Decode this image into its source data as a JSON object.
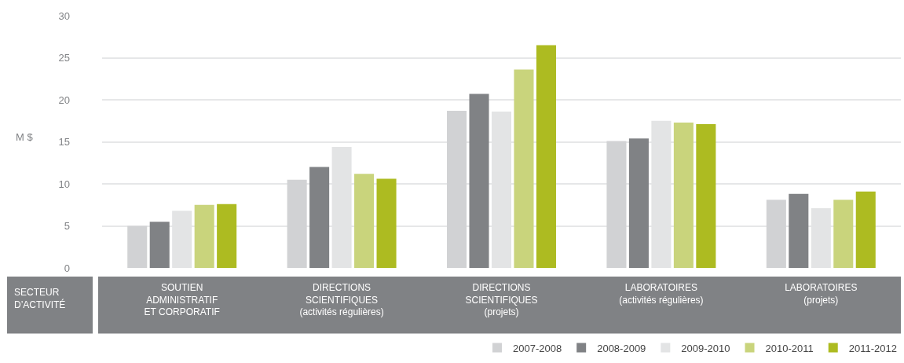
{
  "chart_data": {
    "type": "bar",
    "categories": [
      "SOUTIEN\nADMINISTRATIF\nET CORPORATIF",
      "DIRECTIONS\nSCIENTIFIQUES\n(activités régulières)",
      "DIRECTIONS\nSCIENTIFIQUES\n(projets)",
      "LABORATOIRES\n(activités régulières)",
      "LABORATOIRES\n(projets)"
    ],
    "xlabel": "SECTEUR\nD’ACTIVITÉ",
    "ylabel": "M $",
    "series": [
      {
        "name": "2007-2008",
        "color": "#d1d2d4",
        "values": [
          5.0,
          10.5,
          18.7,
          15.1,
          8.1
        ]
      },
      {
        "name": "2008-2009",
        "color": "#808285",
        "values": [
          5.5,
          12.0,
          20.7,
          15.4,
          8.8
        ]
      },
      {
        "name": "2009-2010",
        "color": "#e3e4e5",
        "values": [
          6.8,
          14.4,
          18.6,
          17.5,
          7.1
        ]
      },
      {
        "name": "2010-2011",
        "color": "#c9d47c",
        "values": [
          7.5,
          11.2,
          23.6,
          17.3,
          8.1
        ]
      },
      {
        "name": "2011-2012",
        "color": "#adbb21",
        "values": [
          7.6,
          10.6,
          26.5,
          17.1,
          9.1
        ]
      }
    ],
    "ylim": [
      0,
      30
    ],
    "yticks": [
      0,
      5,
      10,
      15,
      20,
      25,
      30
    ],
    "grid": "y",
    "legend": "bottom right"
  }
}
